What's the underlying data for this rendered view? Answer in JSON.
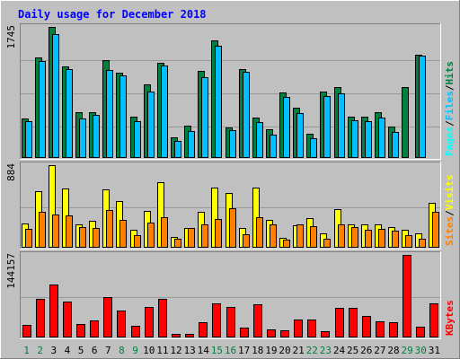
{
  "colors": {
    "title": "#0000ff",
    "panel": "#c0c0c0",
    "frame_light": "#ffffff",
    "frame_dark": "#808080",
    "grid": "#999999",
    "hits": "#008040",
    "files": "#00c0ff",
    "pages": "#00ffff",
    "visits": "#ffff00",
    "sites": "#ff8000",
    "kbytes": "#ff0000",
    "weekday_label": "#000000",
    "weekend_label": "#008040",
    "text": "#000000"
  },
  "chart_data": {
    "type": "bar",
    "title": "Daily usage for December 2018",
    "categories": [
      "1",
      "2",
      "3",
      "4",
      "5",
      "6",
      "7",
      "8",
      "9",
      "10",
      "11",
      "12",
      "13",
      "14",
      "15",
      "16",
      "17",
      "18",
      "19",
      "20",
      "21",
      "22",
      "23",
      "24",
      "25",
      "26",
      "27",
      "28",
      "29",
      "30",
      "31"
    ],
    "weekend_days": [
      "1",
      "2",
      "8",
      "9",
      "15",
      "16",
      "22",
      "23",
      "29",
      "30"
    ],
    "panels": [
      {
        "id": "top",
        "axis_max_label": "1745",
        "ylim": [
          0,
          1745
        ],
        "legend": [
          {
            "label": "Pages",
            "color": "#00ffff"
          },
          {
            "label": "Files",
            "color": "#00c0ff"
          },
          {
            "label": "Hits",
            "color": "#008040"
          }
        ],
        "series": [
          {
            "name": "Hits",
            "color": "#008040",
            "values": [
              525,
              1340,
              1745,
              1225,
              605,
              605,
              1305,
              1135,
              545,
              980,
              1270,
              270,
              425,
              1165,
              1560,
              410,
              1185,
              540,
              380,
              875,
              670,
              320,
              880,
              940,
              545,
              545,
              605,
              415,
              940,
              1380,
              0
            ]
          },
          {
            "name": "Files",
            "color": "#00c0ff",
            "values": [
              490,
              1290,
              1650,
              1180,
              525,
              575,
              1170,
              1105,
              485,
              890,
              1230,
              230,
              355,
              1070,
              1495,
              375,
              1150,
              475,
              315,
              810,
              595,
              265,
              825,
              855,
              505,
              495,
              540,
              345,
              0,
              1365,
              0
            ],
            "series_note": ""
          },
          {
            "name": "Pages",
            "color": "#00ffff",
            "values": [
              0,
              0,
              0,
              0,
              0,
              0,
              0,
              0,
              0,
              0,
              0,
              0,
              0,
              0,
              0,
              0,
              0,
              0,
              0,
              0,
              0,
              0,
              0,
              0,
              0,
              0,
              0,
              0,
              0,
              0,
              0
            ]
          }
        ]
      },
      {
        "id": "middle",
        "axis_max_label": "884",
        "ylim": [
          0,
          884
        ],
        "legend": [
          {
            "label": "Sites",
            "color": "#ff8000"
          },
          {
            "label": "Visits",
            "color": "#ffff00"
          }
        ],
        "series": [
          {
            "name": "Visits",
            "color": "#ffff00",
            "values": [
              255,
              610,
              884,
              630,
              250,
              285,
              620,
              495,
              190,
              395,
              700,
              120,
              215,
              385,
              640,
              590,
              210,
              640,
              300,
              110,
              245,
              315,
              150,
              410,
              250,
              250,
              250,
              220,
              190,
              150,
              480
            ]
          },
          {
            "name": "Sites",
            "color": "#ff8000",
            "values": [
              200,
              385,
              360,
              350,
              220,
              210,
              400,
              295,
              135,
              265,
              330,
              100,
              210,
              250,
              310,
              425,
              140,
              325,
              250,
              90,
              250,
              230,
              100,
              250,
              220,
              190,
              200,
              185,
              130,
              100,
              380
            ]
          }
        ]
      },
      {
        "id": "bottom",
        "axis_max_label": "144157",
        "ylim": [
          0,
          144157
        ],
        "legend": [
          {
            "label": "KBytes",
            "color": "#ff0000"
          }
        ],
        "series": [
          {
            "name": "KBytes",
            "color": "#ff0000",
            "values": [
              22000,
              68000,
              92000,
              63000,
              23000,
              30000,
              70000,
              47000,
              21000,
              53000,
              67000,
              6000,
              7000,
              26000,
              59000,
              53000,
              18000,
              58000,
              14000,
              13000,
              32000,
              31000,
              11000,
              51000,
              51000,
              38000,
              28000,
              27000,
              144157,
              19000,
              60000
            ]
          }
        ]
      }
    ],
    "grid": true
  }
}
